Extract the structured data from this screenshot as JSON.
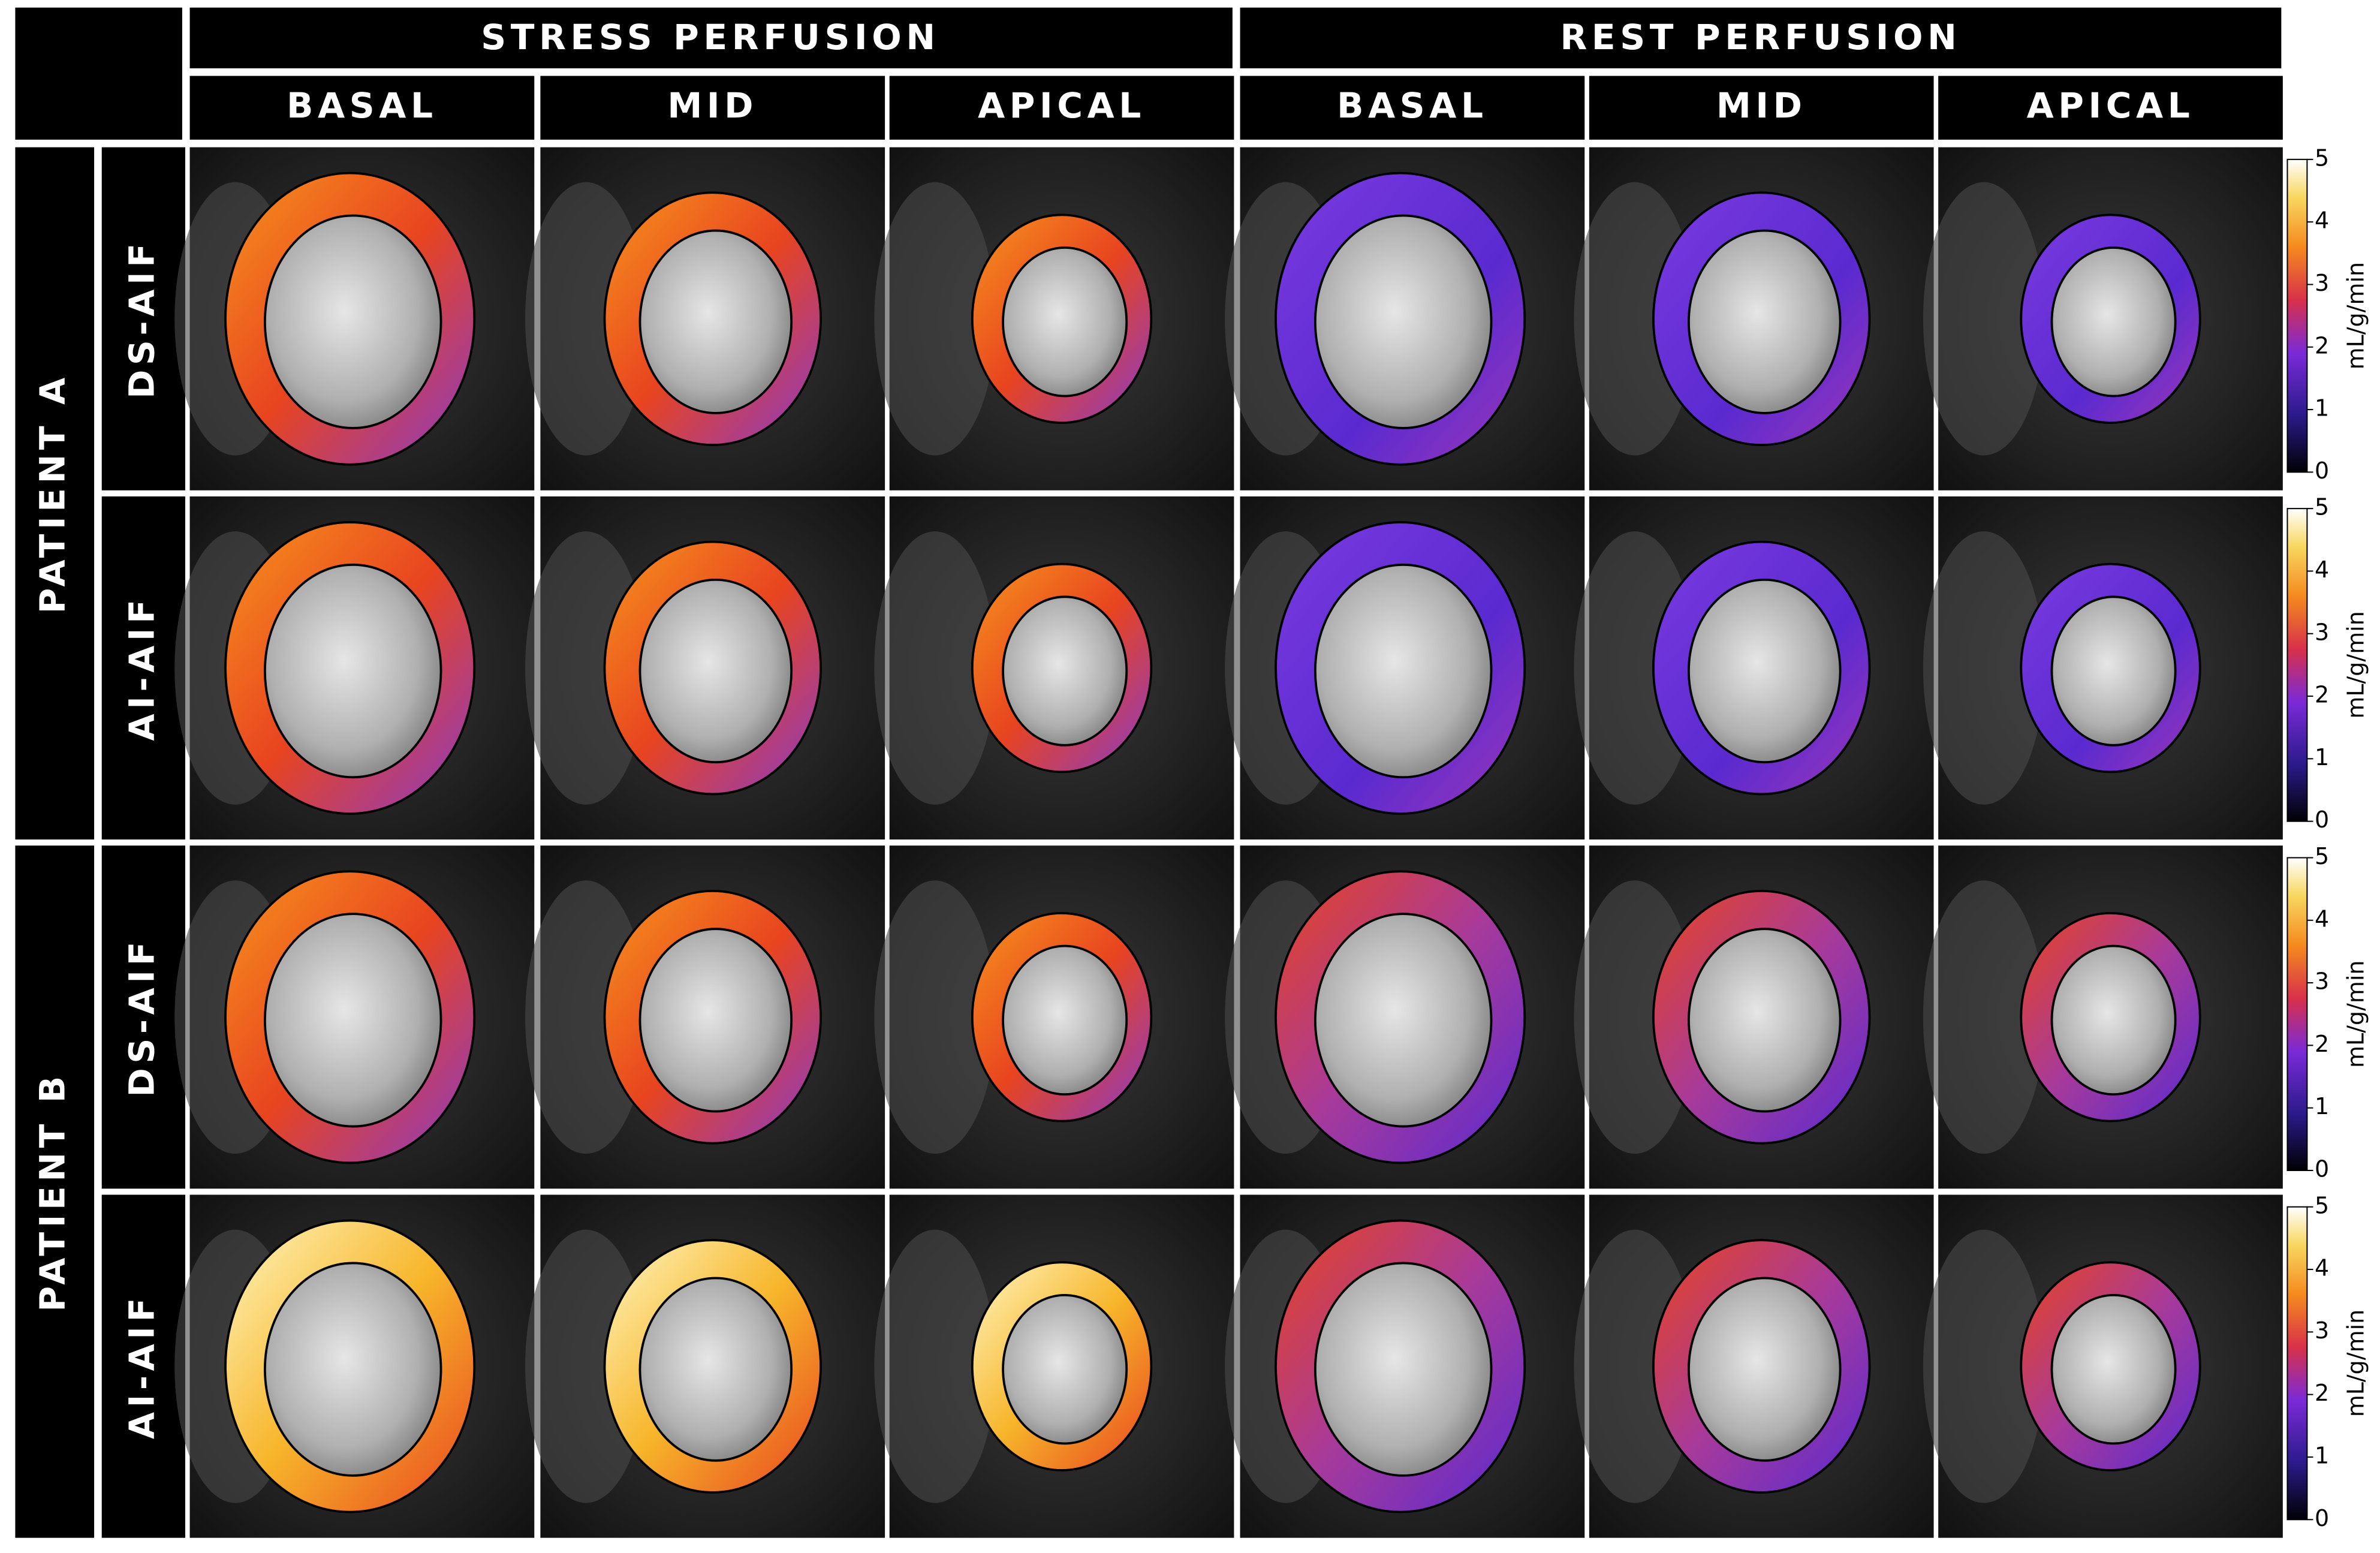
{
  "headers": {
    "stress": "STRESS PERFUSION",
    "rest": "REST PERFUSION"
  },
  "columns": [
    "BASAL",
    "MID",
    "APICAL",
    "BASAL",
    "MID",
    "APICAL"
  ],
  "patients": [
    {
      "label": "PATIENT A",
      "rows": [
        "DS-AIF",
        "AI-AIF"
      ]
    },
    {
      "label": "PATIENT B",
      "rows": [
        "DS-AIF",
        "AI-AIF"
      ]
    }
  ],
  "colorbar": {
    "label": "mL/g/min",
    "range": [
      0,
      5
    ],
    "ticks": [
      0,
      1,
      2,
      3,
      4,
      5
    ]
  }
}
